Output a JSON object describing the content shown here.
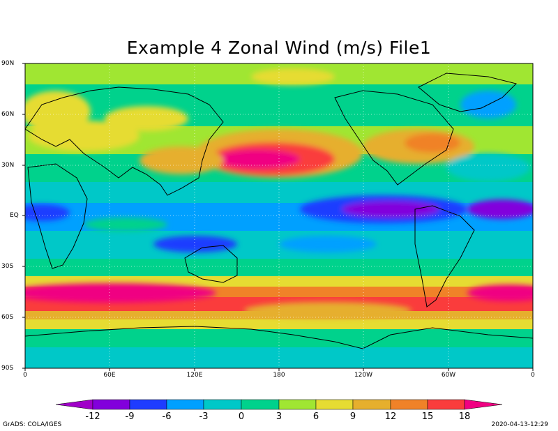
{
  "title": "Example 4 Zonal Wind (m/s) File1",
  "footer": {
    "left": "GrADS: COLA/IGES",
    "right": "2020-04-13-12:29"
  },
  "y_ticks": [
    "90N",
    "60N",
    "30N",
    "EQ",
    "30S",
    "60S",
    "90S"
  ],
  "x_ticks": [
    "0",
    "60E",
    "120E",
    "180",
    "120W",
    "60W",
    "0"
  ],
  "colorbar": {
    "labels": [
      "-12",
      "-9",
      "-6",
      "-3",
      "0",
      "3",
      "6",
      "9",
      "12",
      "15",
      "18"
    ],
    "colors": [
      "#a000c8",
      "#8200dc",
      "#1e3cff",
      "#00a0ff",
      "#00c8c8",
      "#00d28c",
      "#a0e632",
      "#e6dc32",
      "#e6af2d",
      "#f08228",
      "#fa3c3c",
      "#f00082"
    ]
  },
  "map_colors": {
    "lt_minus12": "#a000c8",
    "m12_m9": "#8200dc",
    "m9_m6": "#1e3cff",
    "m6_m3": "#00a0ff",
    "m3_0": "#00c8c8",
    "0_3": "#00d28c",
    "3_6": "#a0e632",
    "6_9": "#e6dc32",
    "9_12": "#e6af2d",
    "12_15": "#f08228",
    "15_18": "#fa3c3c",
    "gt_18": "#f00082"
  }
}
